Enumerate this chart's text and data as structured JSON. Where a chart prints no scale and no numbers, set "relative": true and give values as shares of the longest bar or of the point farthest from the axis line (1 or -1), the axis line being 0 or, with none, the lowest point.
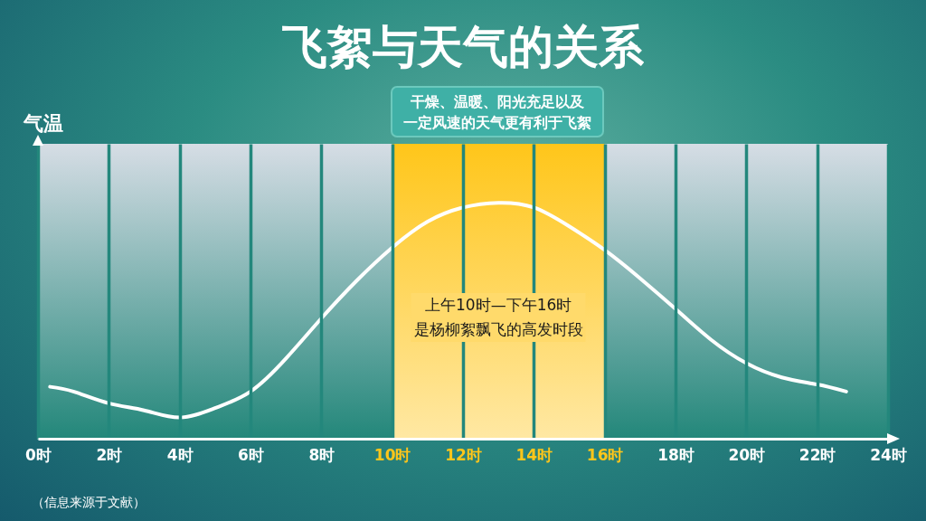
{
  "chart_data": {
    "type": "line",
    "title": "飞絮与天气的关系",
    "ylabel": "气温",
    "relative": true,
    "annotations": [
      "干燥、温暖、阳光充足以及一定风速的天气更有利于飞絮",
      "（信息来源于文献）"
    ],
    "x": [
      0.34,
      1,
      2,
      3,
      4,
      5,
      6,
      7,
      8,
      9,
      10,
      11,
      12,
      13,
      14,
      15,
      16,
      17,
      18,
      19,
      20,
      21,
      22,
      22.82
    ],
    "series": [
      {
        "color": "#ffffff",
        "values": [
          0.22,
          0.2,
          0.15,
          0.12,
          0.09,
          0.13,
          0.2,
          0.34,
          0.51,
          0.67,
          0.81,
          0.92,
          0.98,
          1,
          0.98,
          0.9,
          0.8,
          0.68,
          0.55,
          0.42,
          0.32,
          0.26,
          0.23,
          0.2
        ]
      }
    ],
    "xlim": [
      0,
      24
    ],
    "xticks": [
      {
        "value": 0,
        "label": "0时"
      },
      {
        "value": 2,
        "label": "2时"
      },
      {
        "value": 4,
        "label": "4时"
      },
      {
        "value": 6,
        "label": "6时"
      },
      {
        "value": 8,
        "label": "8时"
      },
      {
        "value": 10,
        "label": "10时"
      },
      {
        "value": 12,
        "label": "12时"
      },
      {
        "value": 14,
        "label": "14时"
      },
      {
        "value": 16,
        "label": "16时"
      },
      {
        "value": 18,
        "label": "18时"
      },
      {
        "value": 20,
        "label": "20时"
      },
      {
        "value": 22,
        "label": "22时"
      },
      {
        "value": 24,
        "label": "24时"
      }
    ],
    "bands": [
      {
        "axis": "x",
        "from": 10,
        "to": 16,
        "label": "上午10时—下午16时是杨柳絮飘飞的高发时段",
        "color": "#ffc61a"
      }
    ],
    "grid": "x"
  }
}
